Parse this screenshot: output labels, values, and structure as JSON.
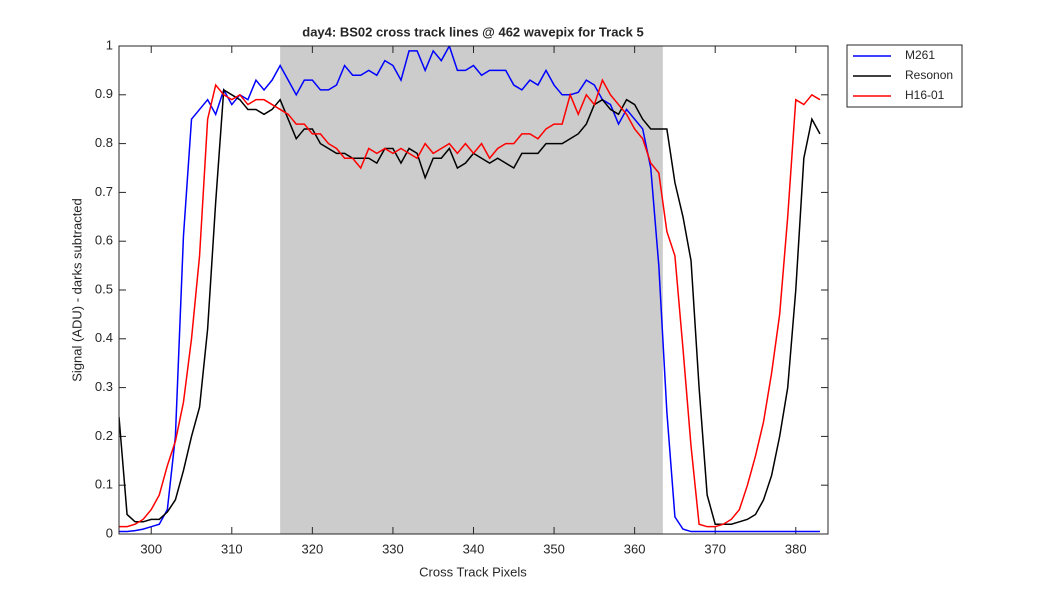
{
  "chart_data": {
    "type": "line",
    "title": "day4: BS02  cross track lines @ 462 wavepix for Track 5",
    "xlabel": "Cross Track Pixels",
    "ylabel": "Signal (ADU) - darks subtracted",
    "x": [
      296,
      297,
      298,
      299,
      300,
      301,
      302,
      303,
      304,
      305,
      306,
      307,
      308,
      309,
      310,
      311,
      312,
      313,
      314,
      315,
      316,
      317,
      318,
      319,
      320,
      321,
      322,
      323,
      324,
      325,
      326,
      327,
      328,
      329,
      330,
      331,
      332,
      333,
      334,
      335,
      336,
      337,
      338,
      339,
      340,
      341,
      342,
      343,
      344,
      345,
      346,
      347,
      348,
      349,
      350,
      351,
      352,
      353,
      354,
      355,
      356,
      357,
      358,
      359,
      360,
      361,
      362,
      363,
      364,
      365,
      366,
      367,
      368,
      369,
      370,
      371,
      372,
      373,
      374,
      375,
      376,
      377,
      378,
      379,
      380,
      381,
      382,
      383
    ],
    "series": [
      {
        "name": "M261",
        "color": "#0000ff",
        "values": [
          0.005,
          0.005,
          0.007,
          0.01,
          0.015,
          0.02,
          0.05,
          0.2,
          0.61,
          0.85,
          0.87,
          0.89,
          0.86,
          0.91,
          0.88,
          0.9,
          0.89,
          0.93,
          0.91,
          0.93,
          0.96,
          0.93,
          0.9,
          0.93,
          0.93,
          0.91,
          0.91,
          0.92,
          0.96,
          0.94,
          0.94,
          0.95,
          0.94,
          0.97,
          0.96,
          0.93,
          0.99,
          0.99,
          0.95,
          0.99,
          0.97,
          1.0,
          0.95,
          0.95,
          0.96,
          0.94,
          0.95,
          0.95,
          0.95,
          0.92,
          0.91,
          0.93,
          0.92,
          0.95,
          0.92,
          0.9,
          0.9,
          0.905,
          0.93,
          0.92,
          0.89,
          0.88,
          0.84,
          0.87,
          0.85,
          0.83,
          0.75,
          0.55,
          0.25,
          0.035,
          0.01,
          0.005,
          0.005,
          0.005,
          0.005,
          0.005,
          0.005,
          0.005,
          0.005,
          0.005,
          0.005,
          0.005,
          0.005,
          0.005,
          0.005,
          0.005,
          0.005,
          0.005
        ]
      },
      {
        "name": "Resonon",
        "color": "#000000",
        "values": [
          0.24,
          0.04,
          0.025,
          0.025,
          0.03,
          0.03,
          0.045,
          0.07,
          0.13,
          0.2,
          0.26,
          0.42,
          0.68,
          0.91,
          0.9,
          0.89,
          0.87,
          0.87,
          0.86,
          0.87,
          0.89,
          0.85,
          0.81,
          0.83,
          0.83,
          0.8,
          0.79,
          0.78,
          0.78,
          0.77,
          0.77,
          0.77,
          0.76,
          0.79,
          0.79,
          0.76,
          0.79,
          0.78,
          0.73,
          0.77,
          0.77,
          0.79,
          0.75,
          0.76,
          0.78,
          0.77,
          0.76,
          0.77,
          0.76,
          0.75,
          0.78,
          0.78,
          0.78,
          0.8,
          0.8,
          0.8,
          0.81,
          0.82,
          0.84,
          0.88,
          0.89,
          0.87,
          0.86,
          0.89,
          0.88,
          0.85,
          0.83,
          0.83,
          0.83,
          0.72,
          0.65,
          0.56,
          0.3,
          0.08,
          0.02,
          0.02,
          0.02,
          0.025,
          0.03,
          0.04,
          0.07,
          0.12,
          0.2,
          0.3,
          0.5,
          0.77,
          0.85,
          0.82
        ]
      },
      {
        "name": "H16-01",
        "color": "#ff0000",
        "values": [
          0.015,
          0.015,
          0.02,
          0.03,
          0.05,
          0.08,
          0.14,
          0.19,
          0.27,
          0.4,
          0.57,
          0.85,
          0.92,
          0.9,
          0.89,
          0.9,
          0.88,
          0.89,
          0.89,
          0.88,
          0.87,
          0.86,
          0.84,
          0.84,
          0.82,
          0.82,
          0.8,
          0.79,
          0.77,
          0.77,
          0.75,
          0.79,
          0.78,
          0.79,
          0.78,
          0.79,
          0.78,
          0.77,
          0.8,
          0.78,
          0.79,
          0.8,
          0.78,
          0.8,
          0.78,
          0.8,
          0.77,
          0.79,
          0.8,
          0.8,
          0.82,
          0.82,
          0.81,
          0.83,
          0.84,
          0.84,
          0.9,
          0.86,
          0.9,
          0.88,
          0.93,
          0.9,
          0.88,
          0.86,
          0.83,
          0.81,
          0.76,
          0.74,
          0.62,
          0.57,
          0.38,
          0.18,
          0.02,
          0.015,
          0.015,
          0.02,
          0.03,
          0.05,
          0.1,
          0.16,
          0.23,
          0.33,
          0.45,
          0.65,
          0.89,
          0.88,
          0.9,
          0.89
        ]
      }
    ],
    "shaded_region": [
      316,
      363.5
    ],
    "shade_color": "#cccccc",
    "xlim": [
      296,
      384
    ],
    "ylim": [
      0,
      1
    ],
    "xticks": [
      300,
      310,
      320,
      330,
      340,
      350,
      360,
      370,
      380
    ],
    "yticks": [
      0,
      0.1,
      0.2,
      0.3,
      0.4,
      0.5,
      0.6,
      0.7,
      0.8,
      0.9,
      1
    ],
    "grid": false,
    "legend": "northeastoutside"
  }
}
